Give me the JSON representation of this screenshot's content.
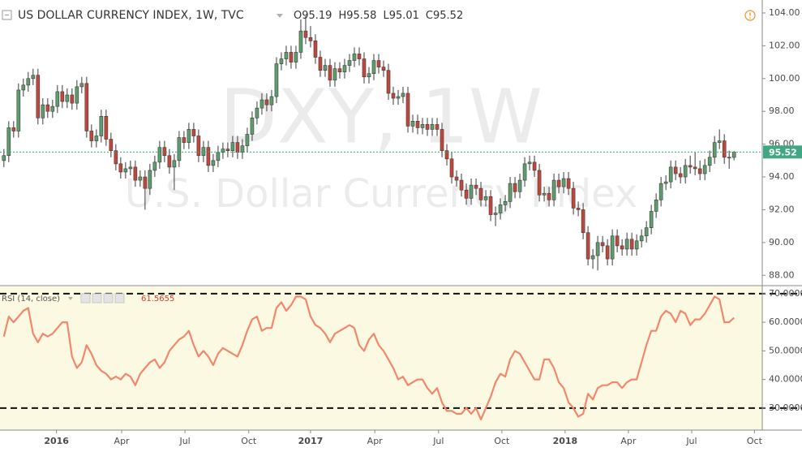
{
  "chart_data": {
    "type": "candlestick",
    "title": "US DOLLAR CURRENCY INDEX, 1W, TVC",
    "ohlc_prefixes": [
      "O",
      "H",
      "L",
      "C"
    ],
    "watermark": [
      "DXY, 1W",
      "U.S. Dollar Currency Index"
    ],
    "up_color": "#5c9e6c",
    "down_color": "#c4463a",
    "open": [
      95.0,
      95.3,
      97.0,
      96.8,
      99.3,
      99.6,
      100.0,
      100.2,
      97.6,
      98.4,
      98.0,
      98.3,
      99.2,
      98.6,
      99.0,
      98.5,
      99.5,
      99.7,
      96.8,
      96.2,
      96.5,
      97.7,
      96.3,
      95.6,
      94.8,
      94.3,
      94.5,
      94.6,
      93.8,
      94.0,
      93.3,
      94.4,
      94.9,
      95.8,
      95.3,
      94.6,
      95.0,
      96.4,
      96.1,
      96.9,
      96.5,
      95.3,
      95.8,
      94.7,
      95.0,
      95.5,
      95.7,
      95.6,
      96.1,
      95.5,
      95.9,
      96.6,
      97.6,
      98.2,
      98.7,
      98.4,
      98.9,
      100.9,
      101.2,
      101.6,
      101.0,
      101.6,
      102.9,
      102.5,
      102.3,
      101.3,
      100.5,
      100.8,
      99.9,
      100.6,
      100.4,
      100.8,
      101.1,
      101.5,
      101.2,
      100.1,
      100.3,
      101.1,
      100.7,
      100.5,
      99.1,
      98.8,
      98.9,
      99.1,
      97.1,
      97.4,
      97.0,
      97.2,
      96.9,
      97.2,
      96.9,
      95.6,
      95.1,
      94.0,
      93.8,
      93.2,
      92.7,
      93.5,
      93.3,
      92.6,
      92.8,
      91.7,
      91.8,
      92.3,
      92.5,
      93.6,
      93.1,
      93.8,
      94.8,
      94.9,
      94.4,
      92.9,
      93.0,
      92.6,
      93.8,
      93.4,
      93.9,
      93.3,
      92.1,
      92.0,
      90.6,
      89.0,
      89.2,
      90.0,
      89.8,
      89.0,
      90.4,
      89.8,
      89.6,
      90.2,
      89.6,
      90.1,
      90.4,
      90.9,
      91.9,
      92.6,
      93.6,
      93.7,
      94.6,
      94.2,
      94.0,
      94.7,
      94.6,
      94.5,
      94.2,
      94.7,
      95.2,
      96.1,
      96.2,
      95.2,
      95.19
    ],
    "high": [
      95.7,
      97.4,
      97.4,
      99.7,
      100.0,
      100.4,
      100.6,
      100.6,
      98.8,
      98.8,
      98.7,
      99.6,
      99.6,
      99.4,
      99.4,
      99.9,
      100.1,
      100.1,
      97.2,
      96.9,
      98.1,
      98.1,
      96.7,
      96.0,
      95.2,
      94.9,
      95.0,
      95.0,
      94.4,
      94.4,
      94.8,
      95.3,
      96.2,
      96.2,
      95.7,
      95.4,
      96.8,
      96.8,
      97.3,
      97.3,
      96.9,
      96.2,
      96.2,
      95.4,
      95.9,
      96.1,
      96.1,
      96.5,
      96.5,
      96.3,
      97.0,
      98.0,
      98.6,
      99.1,
      99.1,
      99.3,
      101.3,
      101.6,
      102.0,
      102.0,
      102.0,
      103.6,
      103.8,
      103.2,
      102.7,
      101.7,
      101.2,
      101.2,
      101.0,
      101.0,
      101.2,
      101.5,
      101.9,
      101.9,
      101.6,
      100.7,
      101.5,
      101.5,
      101.1,
      100.9,
      99.5,
      99.3,
      99.5,
      99.5,
      97.8,
      97.8,
      97.6,
      97.6,
      97.6,
      97.6,
      97.3,
      96.0,
      95.5,
      94.4,
      94.2,
      93.6,
      93.9,
      93.9,
      93.7,
      93.2,
      93.2,
      92.2,
      92.7,
      92.9,
      94.0,
      94.0,
      94.2,
      95.2,
      95.3,
      95.3,
      94.8,
      93.4,
      93.4,
      94.2,
      94.2,
      94.3,
      94.3,
      93.7,
      92.5,
      92.4,
      91.0,
      89.6,
      90.4,
      90.4,
      90.2,
      90.8,
      90.8,
      90.2,
      90.6,
      90.6,
      90.5,
      90.8,
      91.3,
      92.3,
      93.0,
      94.0,
      94.1,
      95.0,
      95.0,
      94.6,
      95.1,
      95.3,
      95.5,
      95.0,
      95.1,
      95.6,
      96.5,
      96.9,
      96.6,
      95.6,
      95.58
    ],
    "low": [
      94.6,
      94.9,
      96.4,
      96.4,
      98.9,
      99.2,
      99.6,
      97.2,
      97.2,
      97.6,
      97.6,
      97.9,
      98.2,
      98.2,
      98.1,
      98.1,
      99.1,
      96.4,
      95.8,
      95.8,
      96.1,
      95.9,
      95.2,
      94.4,
      93.9,
      93.9,
      94.1,
      93.4,
      93.4,
      92.0,
      92.9,
      94.0,
      94.5,
      94.9,
      94.2,
      93.2,
      94.6,
      95.7,
      95.7,
      96.1,
      94.9,
      94.9,
      94.3,
      94.3,
      94.6,
      95.1,
      95.2,
      95.2,
      95.1,
      95.1,
      95.5,
      96.2,
      97.2,
      97.8,
      98.0,
      98.0,
      98.5,
      100.5,
      100.8,
      100.6,
      100.6,
      101.2,
      102.1,
      101.9,
      100.9,
      100.1,
      100.1,
      99.5,
      99.5,
      100.0,
      100.0,
      100.4,
      100.7,
      100.8,
      99.7,
      99.7,
      99.9,
      100.3,
      100.1,
      98.7,
      98.4,
      98.4,
      98.5,
      96.7,
      96.7,
      96.6,
      96.6,
      96.5,
      96.5,
      96.5,
      95.2,
      94.7,
      93.6,
      93.4,
      92.8,
      92.3,
      92.3,
      92.9,
      92.2,
      92.2,
      91.3,
      91.0,
      91.4,
      91.9,
      92.1,
      92.7,
      92.7,
      93.4,
      94.4,
      94.0,
      92.5,
      92.5,
      92.2,
      92.2,
      93.0,
      93.0,
      92.9,
      91.7,
      91.6,
      90.2,
      88.6,
      88.4,
      88.3,
      89.4,
      88.6,
      88.6,
      89.4,
      89.2,
      89.2,
      89.2,
      89.2,
      89.7,
      90.0,
      90.5,
      91.5,
      92.2,
      93.2,
      93.3,
      93.8,
      93.6,
      93.6,
      94.2,
      94.1,
      93.8,
      93.8,
      94.3,
      94.8,
      95.7,
      94.8,
      94.5,
      95.01
    ],
    "close": [
      95.3,
      97.0,
      96.8,
      99.3,
      99.6,
      100.0,
      100.2,
      97.6,
      98.4,
      98.0,
      98.3,
      99.2,
      98.6,
      99.0,
      98.5,
      99.5,
      99.7,
      96.8,
      96.2,
      96.5,
      97.7,
      96.3,
      95.6,
      94.8,
      94.3,
      94.5,
      94.6,
      93.8,
      94.0,
      93.3,
      94.4,
      94.9,
      95.8,
      95.3,
      94.6,
      95.0,
      96.4,
      96.1,
      96.9,
      96.5,
      95.3,
      95.8,
      94.7,
      95.0,
      95.5,
      95.7,
      95.6,
      96.1,
      95.5,
      95.9,
      96.6,
      97.6,
      98.2,
      98.7,
      98.4,
      98.9,
      100.9,
      101.2,
      101.6,
      101.0,
      101.6,
      102.9,
      102.5,
      102.3,
      101.3,
      100.5,
      100.8,
      99.9,
      100.6,
      100.4,
      100.8,
      101.1,
      101.5,
      101.2,
      100.1,
      100.3,
      101.1,
      100.7,
      100.5,
      99.1,
      98.8,
      98.9,
      99.1,
      97.1,
      97.4,
      97.0,
      97.2,
      96.9,
      97.2,
      96.9,
      95.6,
      95.1,
      94.0,
      93.8,
      93.2,
      92.7,
      93.5,
      93.3,
      92.6,
      92.8,
      91.7,
      91.8,
      92.3,
      92.5,
      93.6,
      93.1,
      93.8,
      94.8,
      94.9,
      94.4,
      92.9,
      93.0,
      92.6,
      93.8,
      93.4,
      93.9,
      93.3,
      92.1,
      92.0,
      90.6,
      89.0,
      89.2,
      90.0,
      89.8,
      89.0,
      90.4,
      89.8,
      89.6,
      90.2,
      89.6,
      90.1,
      90.4,
      90.9,
      91.9,
      92.6,
      93.6,
      93.7,
      94.6,
      94.2,
      94.0,
      94.7,
      94.6,
      94.5,
      94.2,
      94.7,
      95.2,
      96.1,
      96.2,
      95.2,
      95.19,
      95.52
    ],
    "xlim": [
      -0.8,
      155.8
    ],
    "xticks": [
      {
        "value": 10.8,
        "label": "2016"
      },
      {
        "value": 24.2,
        "label": "Apr"
      },
      {
        "value": 37.2,
        "label": "Jul"
      },
      {
        "value": 50.3,
        "label": "Oct"
      },
      {
        "value": 63,
        "label": "2017"
      },
      {
        "value": 76.2,
        "label": "Apr"
      },
      {
        "value": 89.3,
        "label": "Jul"
      },
      {
        "value": 102.3,
        "label": "Oct"
      },
      {
        "value": 115.3,
        "label": "2018"
      },
      {
        "value": 128.3,
        "label": "Apr"
      },
      {
        "value": 141.3,
        "label": "Jul"
      },
      {
        "value": 154.2,
        "label": "Oct"
      }
    ],
    "ylim": [
      87.37,
      104.79
    ],
    "yticks": [
      {
        "value": 88,
        "label": "88.00"
      },
      {
        "value": 90,
        "label": "90.00"
      },
      {
        "value": 92,
        "label": "92.00"
      },
      {
        "value": 94,
        "label": "94.00"
      },
      {
        "value": 96,
        "label": "96.00"
      },
      {
        "value": 98,
        "label": "98.00"
      },
      {
        "value": 100,
        "label": "100.00"
      },
      {
        "value": 102,
        "label": "102.00"
      },
      {
        "value": 104,
        "label": "104.00"
      }
    ],
    "last_price_color": "#3fa882",
    "indicator": {
      "type": "line",
      "name": "RSI (14, close)",
      "color": "#f2876c",
      "value_color": "#d23c2c",
      "band_fill": "#fcf9e2",
      "bands": [
        30,
        70
      ],
      "values": [
        55,
        62,
        60,
        62,
        64,
        65,
        56,
        53,
        56,
        55,
        56,
        58,
        60,
        60,
        48,
        44,
        46,
        52,
        49,
        45,
        43,
        42,
        40,
        41,
        40,
        42,
        41,
        38,
        42,
        44,
        46,
        47,
        44,
        46,
        50,
        52,
        54,
        55,
        57,
        52,
        48,
        50,
        48,
        45,
        49,
        51,
        50,
        49,
        48,
        52,
        57,
        61,
        62,
        57,
        58,
        58,
        65,
        67,
        64,
        66,
        69,
        69,
        68,
        62,
        59,
        58,
        56,
        53,
        56,
        57,
        58,
        59,
        58,
        52,
        50,
        54,
        56,
        52,
        50,
        47,
        44,
        40,
        41,
        38,
        39,
        40,
        40,
        37,
        35,
        37,
        32,
        29,
        29,
        28,
        28,
        30,
        28,
        30,
        26,
        30,
        34,
        39,
        42,
        41,
        47,
        50,
        49,
        46,
        43,
        40,
        40,
        47,
        47,
        44,
        39,
        37,
        32,
        30,
        27,
        28,
        35,
        33,
        37,
        38,
        38,
        39,
        39,
        37,
        39,
        40,
        40,
        46,
        52,
        57,
        57,
        62,
        64,
        63,
        60,
        64,
        63,
        59,
        61,
        61,
        63,
        66,
        69,
        68,
        60,
        60,
        61.5655
      ],
      "ylim": [
        22.3,
        72.8
      ],
      "yticks": [
        {
          "value": 30,
          "label": "30.0000"
        },
        {
          "value": 40,
          "label": "40.0000"
        },
        {
          "value": 50,
          "label": "50.0000"
        },
        {
          "value": 60,
          "label": "60.0000"
        },
        {
          "value": 70,
          "label": "70.0000"
        }
      ]
    }
  }
}
